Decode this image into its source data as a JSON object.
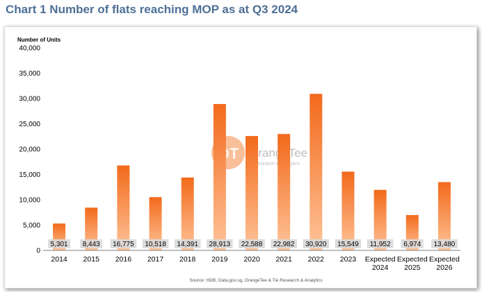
{
  "heading": "Chart 1 Number of flats reaching MOP as at Q3 2024",
  "colors": {
    "bar_top": "#f26a1b",
    "bar_bottom": "#ffc49a",
    "heading": "#4d6f95",
    "label_box": "#d9d9d9"
  },
  "chart_data": {
    "type": "bar",
    "title": "",
    "ylabel": "Number of Units",
    "xlabel": "",
    "ylim": [
      0,
      40000
    ],
    "yticks": [
      "0",
      "5,000",
      "10,000",
      "15,000",
      "20,000",
      "25,000",
      "30,000",
      "35,000",
      "40,000"
    ],
    "categories": [
      "2014",
      "2015",
      "2016",
      "2017",
      "2018",
      "2019",
      "2020",
      "2021",
      "2022",
      "2023",
      "Expected 2024",
      "Expected 2025",
      "Expected 2026"
    ],
    "values": [
      5301,
      8443,
      16775,
      10518,
      14391,
      28913,
      22588,
      22982,
      30920,
      15549,
      11952,
      6974,
      13480
    ],
    "value_labels": [
      "5,301",
      "8,443",
      "16,775",
      "10,518",
      "14,391",
      "28,913",
      "22,588",
      "22,982",
      "30,920",
      "15,549",
      "11,952",
      "6,974",
      "13,480"
    ],
    "grid": false,
    "source": "Source: HDB, Data.gov.sg, OrangeTee & Tie Research & Analytics"
  },
  "watermark": {
    "brand": "OrangeTee",
    "tagline": "Research & Analytics",
    "icon": "orangetee-logo-icon"
  }
}
